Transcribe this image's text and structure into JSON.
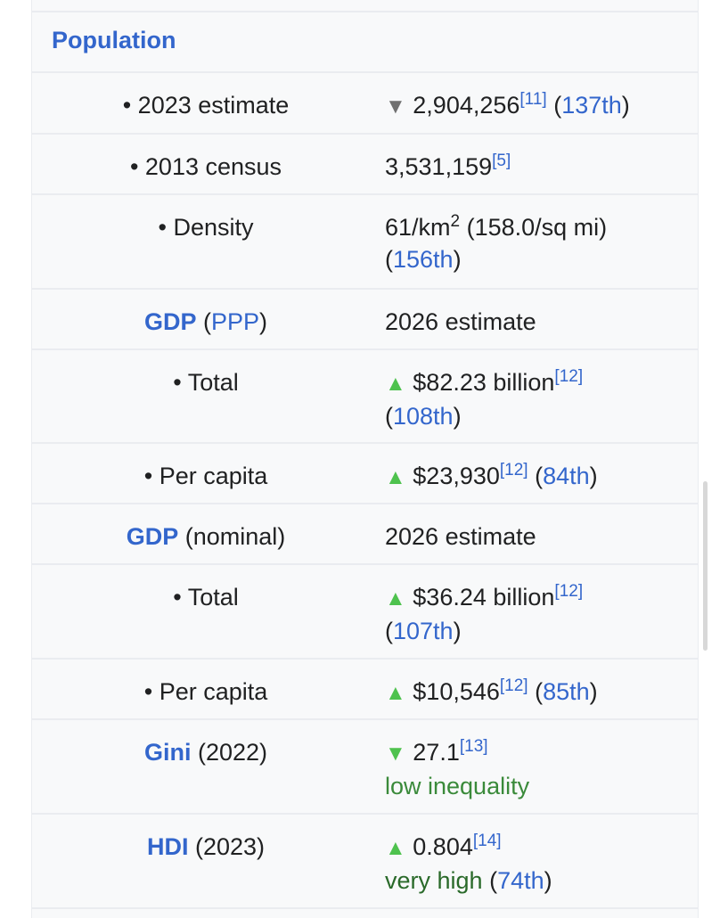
{
  "section_title": "Population",
  "rows": [
    {
      "label": "• 2023 estimate",
      "arrow": "▼",
      "value": "2,904,256",
      "ref": "[11]",
      "rank": "137th"
    },
    {
      "label": "• 2013 census",
      "value": "3,531,159",
      "ref": "[5]"
    },
    {
      "label": "• Density",
      "value": "61/km",
      "sup": "2",
      "value2": " (158.0/sq mi)",
      "rank": "156th"
    },
    {
      "label_link": "GDP",
      "label_link2": "PPP",
      "value": "2026 estimate"
    },
    {
      "label": "• Total",
      "arrow": "▲",
      "value": "$82.23 billion",
      "ref": "[12]",
      "rank": "108th"
    },
    {
      "label": "• Per capita",
      "arrow": "▲",
      "value": "$23,930",
      "ref": "[12]",
      "rank": "84th"
    },
    {
      "label_link": "GDP",
      "label_rest": "(nominal)",
      "value": "2026 estimate"
    },
    {
      "label": "• Total",
      "arrow": "▲",
      "value": "$36.24 billion",
      "ref": "[12]",
      "rank": "107th"
    },
    {
      "label": "• Per capita",
      "arrow": "▲",
      "value": "$10,546",
      "ref": "[12]",
      "rank": "85th"
    },
    {
      "label_link": "Gini",
      "label_rest": "(2022)",
      "arrow": "▼",
      "value": "27.1",
      "ref": "[13]",
      "note": "low inequality"
    },
    {
      "label_link": "HDI",
      "label_rest": "(2023)",
      "arrow": "▲",
      "value": "0.804",
      "ref": "[14]",
      "note": "very high",
      "rank": "74th"
    }
  ],
  "colors": {
    "link": "#3366cc",
    "increase": "#4ec24e",
    "decrease_neutral": "#707070",
    "background": "#f8f9fa",
    "border": "#eaecf0"
  }
}
